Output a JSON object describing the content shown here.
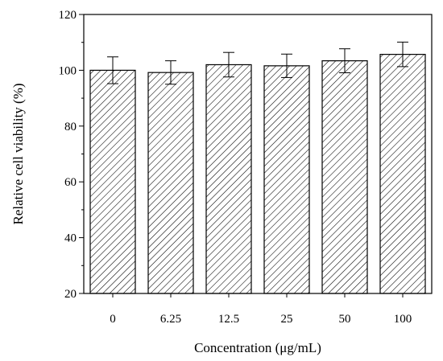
{
  "chart_data": {
    "type": "bar",
    "categories": [
      "0",
      "6.25",
      "12.5",
      "25",
      "50",
      "100"
    ],
    "values": [
      100.0,
      99.2,
      102.0,
      101.6,
      103.4,
      105.7
    ],
    "errors": [
      4.8,
      4.2,
      4.4,
      4.2,
      4.3,
      4.4
    ],
    "xlabel": "Concentration (μg/mL)",
    "ylabel": "Relative cell viability (%)",
    "ylim": [
      20,
      120
    ],
    "yticks": [
      20,
      40,
      60,
      80,
      100,
      120
    ],
    "grid": false,
    "bar_fill": "diagonal-hatch",
    "colors": {
      "bar_stroke": "#000000",
      "hatch": "#000000",
      "axis": "#000000",
      "background": "#ffffff"
    }
  }
}
